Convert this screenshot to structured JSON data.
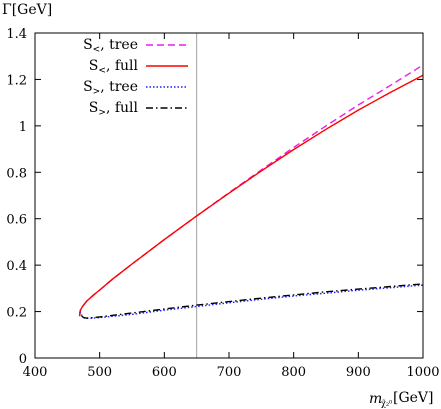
{
  "chart_data": {
    "type": "line",
    "title": "",
    "ylabel": "Γ[GeV]",
    "xlabel_main": "m",
    "xlabel_sub": "χ̃₂⁰",
    "xlabel_unit": "[GeV]",
    "xlim": [
      400,
      1000
    ],
    "ylim": [
      0,
      1.4
    ],
    "xticks": [
      400,
      500,
      600,
      700,
      800,
      900,
      1000
    ],
    "xtick_labels": [
      "400",
      "500",
      "600",
      "700",
      "800",
      "900",
      "1000"
    ],
    "yticks": [
      0,
      0.2,
      0.4,
      0.6,
      0.8,
      1.0,
      1.2,
      1.4
    ],
    "ytick_labels": [
      "0",
      "0.2",
      "0.4",
      "0.6",
      "0.8",
      "1",
      "1.2",
      "1.4"
    ],
    "grid": false,
    "legend_position": "top-left",
    "vertical_line_x": 650,
    "series": [
      {
        "name": "S<, tree",
        "legend_main": "S",
        "legend_sub": "<",
        "legend_rest": ", tree",
        "color": "#e81ee8",
        "style": "dashed",
        "x": [
          469,
          470,
          473,
          480,
          490,
          500,
          520,
          550,
          600,
          650,
          700,
          750,
          800,
          850,
          900,
          950,
          1000
        ],
        "y": [
          0.18,
          0.205,
          0.22,
          0.245,
          0.27,
          0.293,
          0.34,
          0.405,
          0.51,
          0.612,
          0.712,
          0.81,
          0.907,
          1.0,
          1.09,
          1.175,
          1.262
        ]
      },
      {
        "name": "S<, full",
        "legend_main": "S",
        "legend_sub": "<",
        "legend_rest": ", full",
        "color": "#ff0000",
        "style": "solid",
        "x": [
          469,
          470,
          473,
          480,
          490,
          500,
          520,
          550,
          600,
          650,
          700,
          750,
          800,
          850,
          900,
          950,
          1000
        ],
        "y": [
          0.18,
          0.205,
          0.22,
          0.245,
          0.27,
          0.293,
          0.34,
          0.405,
          0.51,
          0.612,
          0.71,
          0.806,
          0.898,
          0.985,
          1.068,
          1.145,
          1.218
        ]
      },
      {
        "name": "S>, tree",
        "legend_main": "S",
        "legend_sub": ">",
        "legend_rest": ", tree",
        "color": "#1a1aff",
        "style": "dotted",
        "x": [
          469,
          472,
          476,
          480,
          490,
          500,
          550,
          600,
          650,
          700,
          750,
          800,
          850,
          900,
          950,
          1000
        ],
        "y": [
          0.2,
          0.185,
          0.173,
          0.171,
          0.172,
          0.174,
          0.188,
          0.206,
          0.222,
          0.238,
          0.253,
          0.267,
          0.279,
          0.292,
          0.303,
          0.314
        ]
      },
      {
        "name": "S>, full",
        "legend_main": "S",
        "legend_sub": ">",
        "legend_rest": ", full",
        "color": "#000000",
        "style": "dashdot",
        "x": [
          472,
          476,
          480,
          490,
          500,
          550,
          600,
          650,
          700,
          750,
          800,
          850,
          900,
          950,
          1000
        ],
        "y": [
          0.18,
          0.173,
          0.172,
          0.174,
          0.177,
          0.194,
          0.211,
          0.228,
          0.243,
          0.258,
          0.272,
          0.285,
          0.297,
          0.308,
          0.319
        ]
      }
    ]
  }
}
